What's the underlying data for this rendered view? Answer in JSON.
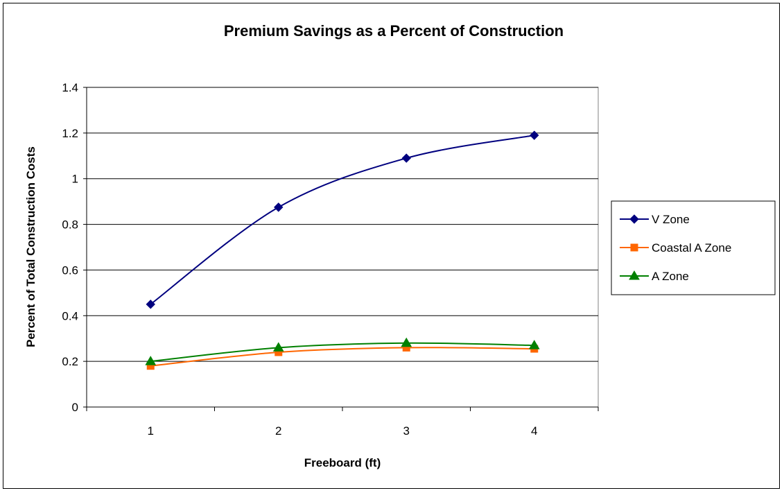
{
  "chart_data": {
    "type": "line",
    "title": "Premium Savings as a Percent of Construction",
    "xlabel": "Freeboard (ft)",
    "ylabel": "Percent of Total Construction Costs",
    "categories": [
      "1",
      "2",
      "3",
      "4"
    ],
    "ylim": [
      0,
      1.4
    ],
    "yticks": [
      "0",
      "0.2",
      "0.4",
      "0.6",
      "0.8",
      "1",
      "1.2",
      "1.4"
    ],
    "grid": true,
    "legend_position": "right",
    "series": [
      {
        "name": "V Zone",
        "values": [
          0.45,
          0.875,
          1.09,
          1.19
        ],
        "color": "#00007f",
        "marker": "diamond"
      },
      {
        "name": "Coastal A Zone",
        "values": [
          0.18,
          0.24,
          0.26,
          0.255
        ],
        "color": "#ff6600",
        "marker": "square"
      },
      {
        "name": "A Zone",
        "values": [
          0.2,
          0.26,
          0.28,
          0.27
        ],
        "color": "#008000",
        "marker": "triangle"
      }
    ]
  }
}
